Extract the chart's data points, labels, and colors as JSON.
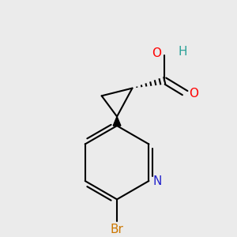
{
  "background_color": "#ebebeb",
  "figsize": [
    3.0,
    3.0
  ],
  "dpi": 100,
  "bond_color": "#000000",
  "bond_width": 1.5,
  "atom_colors": {
    "O": "#ff0000",
    "H": "#2aa198",
    "N": "#2222cc",
    "Br": "#cc7700"
  },
  "font_size": 11
}
